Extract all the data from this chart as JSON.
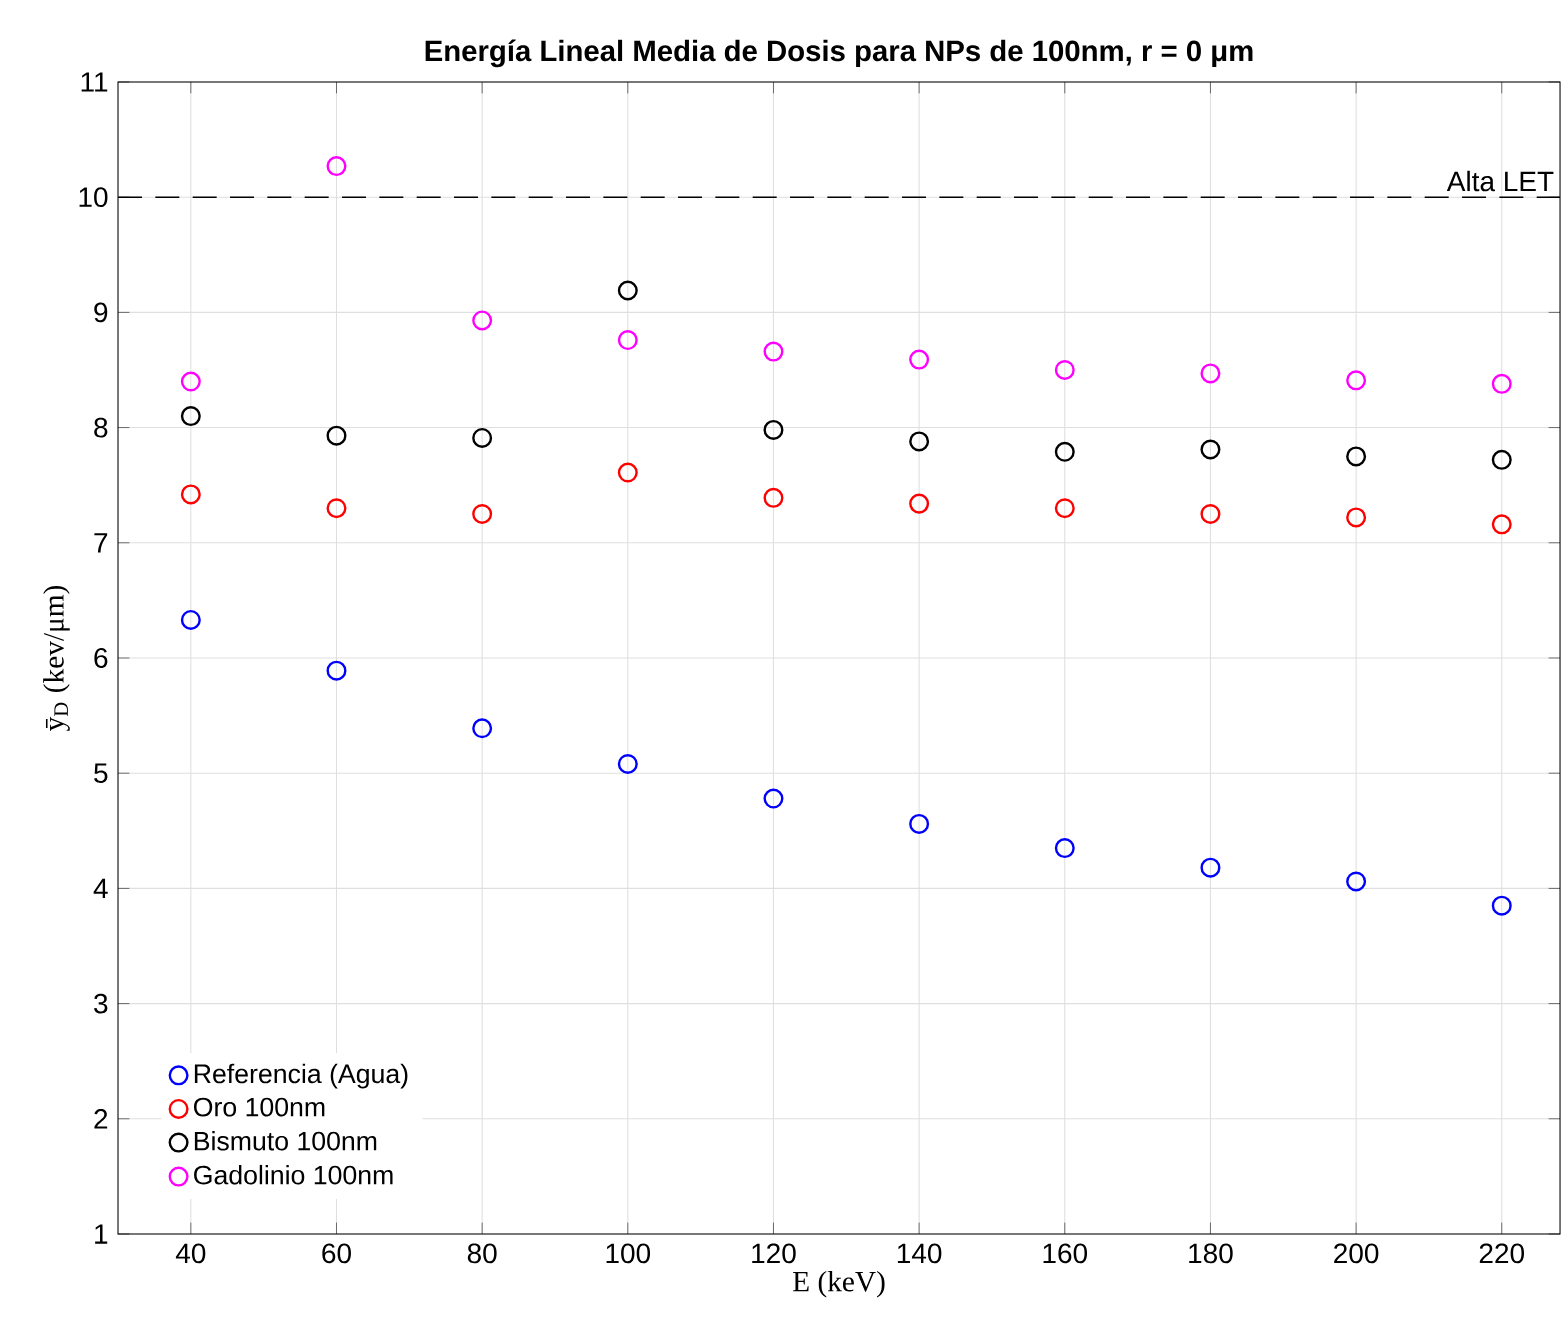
{
  "chart_data": {
    "type": "scatter",
    "title": "Energía Lineal Media de Dosis para NPs de 100nm, r = 0 μm",
    "xlabel": "E (keV)",
    "ylabel": "ȳ$_{D}$ (kev/μm)",
    "x": [
      40,
      60,
      80,
      100,
      120,
      140,
      160,
      180,
      200,
      220
    ],
    "series": [
      {
        "name": "Referencia (Agua)",
        "color": "#0000ff",
        "values": [
          6.33,
          5.89,
          5.39,
          5.08,
          4.78,
          4.56,
          4.35,
          4.18,
          4.06,
          3.85
        ]
      },
      {
        "name": "Oro 100nm",
        "color": "#ff0000",
        "values": [
          7.42,
          7.3,
          7.25,
          7.61,
          7.39,
          7.34,
          7.3,
          7.25,
          7.22,
          7.16
        ]
      },
      {
        "name": "Bismuto 100nm",
        "color": "#000000",
        "values": [
          8.1,
          7.93,
          7.91,
          9.19,
          7.98,
          7.88,
          7.79,
          7.81,
          7.75,
          7.72
        ]
      },
      {
        "name": "Gadolinio 100nm",
        "color": "#ff00ff",
        "values": [
          8.4,
          10.27,
          8.93,
          8.76,
          8.66,
          8.59,
          8.5,
          8.47,
          8.41,
          8.38
        ]
      }
    ],
    "xlim": [
      30,
      228
    ],
    "ylim": [
      1,
      11
    ],
    "xticks": [
      40,
      60,
      80,
      100,
      120,
      140,
      160,
      180,
      200,
      220
    ],
    "yticks": [
      1,
      2,
      3,
      4,
      5,
      6,
      7,
      8,
      9,
      10,
      11
    ],
    "ref_lines": [
      {
        "axis": "y",
        "value": 10,
        "label": "Alta LET",
        "color": "#000000",
        "line_style": "dashed"
      }
    ],
    "grid": true,
    "legend": "bottom left",
    "marker": "circle"
  }
}
